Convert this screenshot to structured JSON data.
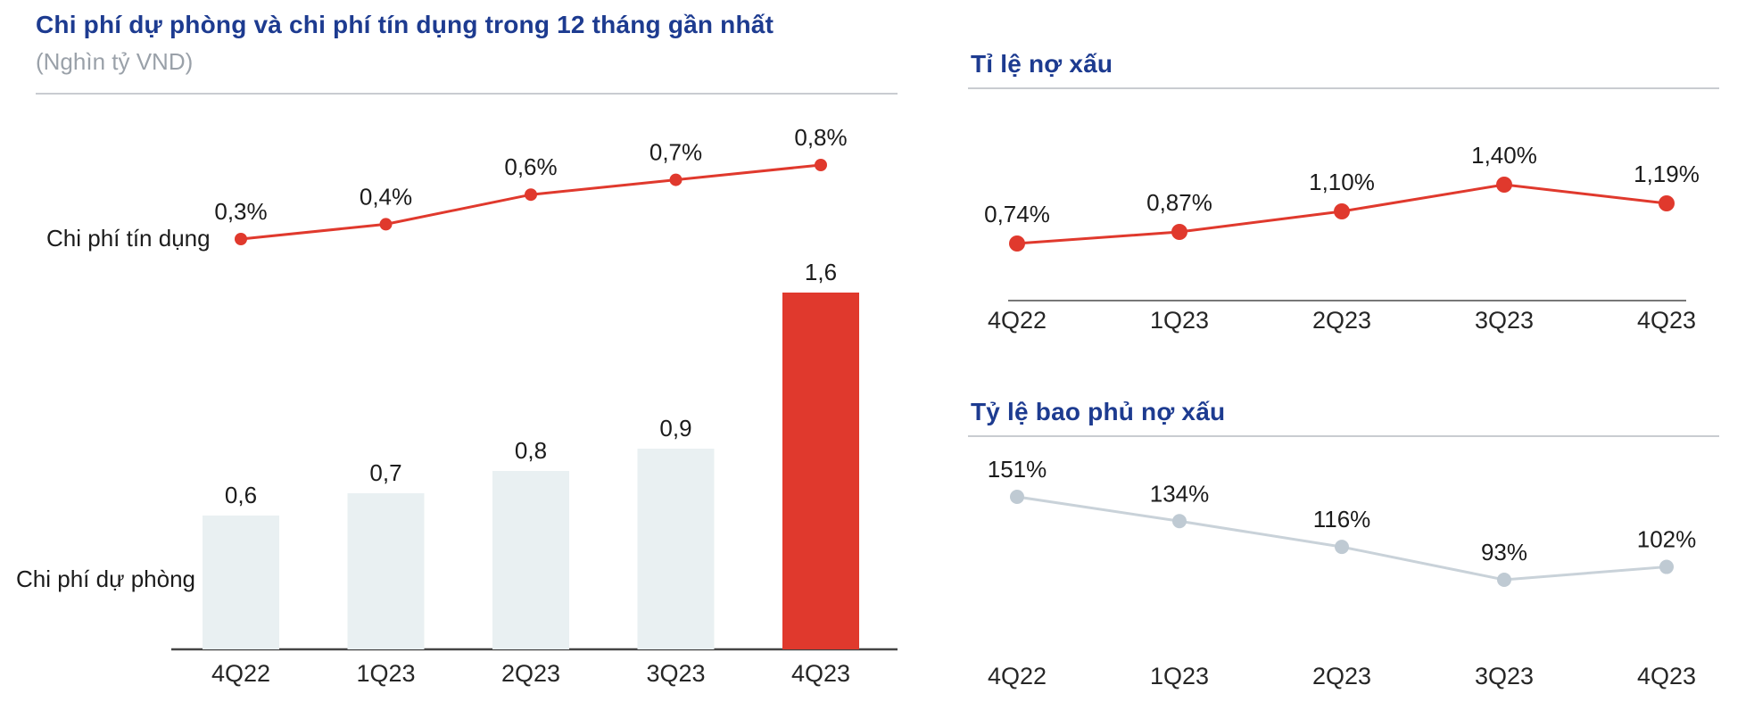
{
  "colors": {
    "title_blue": "#1d3b90",
    "red": "#e0392d",
    "bar_fill": "#e9f0f2",
    "gray_line": "#c9d2d9",
    "gray_dot": "#bfcad3",
    "divider": "#c9ccd1",
    "axis": "#454545",
    "label": "#1b1b1b",
    "subtitle_gray": "#9aa1a9"
  },
  "chart_data": [
    {
      "id": "provision-and-credit-cost",
      "type": "bar",
      "title": "Chi phí dự phòng và chi phí tín dụng trong 12 tháng gần nhất",
      "subtitle": "(Nghìn tỷ VND)",
      "categories": [
        "4Q22",
        "1Q23",
        "2Q23",
        "3Q23",
        "4Q23"
      ],
      "series": [
        {
          "name": "Chi phí tín dụng",
          "type": "line",
          "values": [
            0.3,
            0.4,
            0.6,
            0.7,
            0.8
          ],
          "labels": [
            "0,3%",
            "0,4%",
            "0,6%",
            "0,7%",
            "0,8%"
          ],
          "color": "red"
        },
        {
          "name": "Chi phí dự phòng",
          "type": "bar",
          "values": [
            0.6,
            0.7,
            0.8,
            0.9,
            1.6
          ],
          "labels": [
            "0,6",
            "0,7",
            "0,8",
            "0,9",
            "1,6"
          ],
          "highlight_index": 4
        }
      ],
      "grid": false,
      "legend_position": "left-of-series"
    },
    {
      "id": "npl-ratio",
      "type": "line",
      "title": "Tỉ lệ nợ xấu",
      "categories": [
        "4Q22",
        "1Q23",
        "2Q23",
        "3Q23",
        "4Q23"
      ],
      "values": [
        0.74,
        0.87,
        1.1,
        1.4,
        1.19
      ],
      "labels": [
        "0,74%",
        "0,87%",
        "1,10%",
        "1,40%",
        "1,19%"
      ],
      "color": "red",
      "grid": false
    },
    {
      "id": "npl-coverage-ratio",
      "type": "line",
      "title": "Tỷ lệ bao phủ nợ xấu",
      "categories": [
        "4Q22",
        "1Q23",
        "2Q23",
        "3Q23",
        "4Q23"
      ],
      "values": [
        151,
        134,
        116,
        93,
        102
      ],
      "labels": [
        "151%",
        "134%",
        "116%",
        "93%",
        "102%"
      ],
      "color": "gray",
      "grid": false
    }
  ]
}
